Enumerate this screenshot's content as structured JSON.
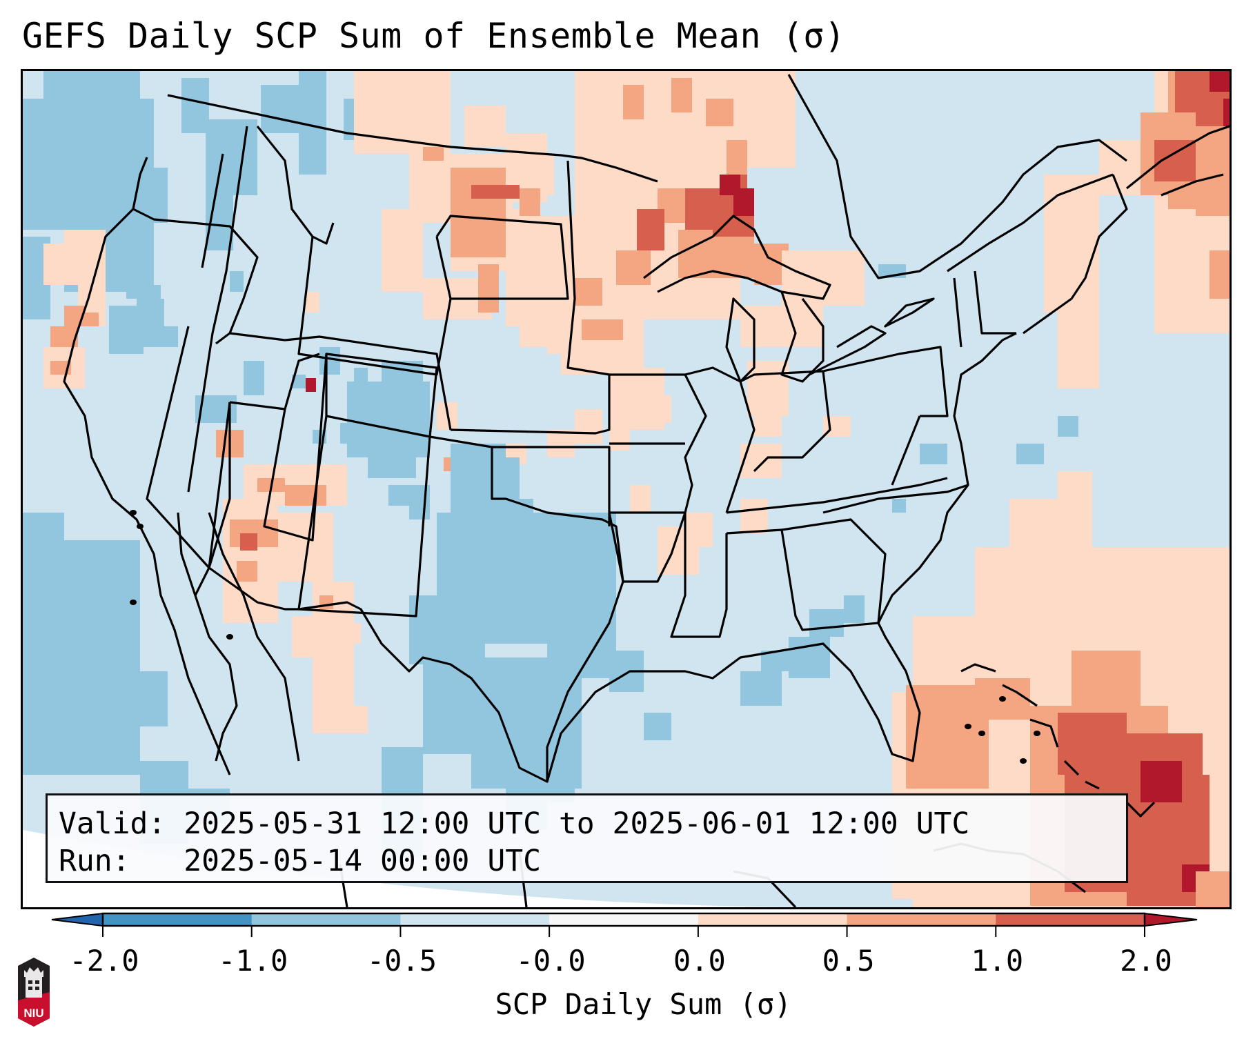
{
  "title": "GEFS Daily SCP Sum of Ensemble Mean (σ)",
  "info_box": {
    "valid_label": "Valid:",
    "valid_value": "2025-05-31 12:00 UTC to 2025-06-01 12:00 UTC",
    "run_label": "Run:  ",
    "run_value": "2025-05-14 00:00 UTC"
  },
  "colorbar": {
    "label": "SCP Daily Sum (σ)",
    "ticks": [
      "-2.0",
      "-1.0",
      "-0.5",
      "-0.0",
      "0.0",
      "0.5",
      "1.0",
      "2.0"
    ],
    "bins": [
      {
        "range": "< -2.0",
        "color": "#2166ac"
      },
      {
        "range": "-2.0 to -1.0",
        "color": "#4393c3"
      },
      {
        "range": "-1.0 to -0.5",
        "color": "#92c5de"
      },
      {
        "range": "-0.5 to -0.0",
        "color": "#d1e5f0"
      },
      {
        "range": "-0.0 to 0.0",
        "color": "#f7f7f7"
      },
      {
        "range": "0.0 to 0.5",
        "color": "#fddbc7"
      },
      {
        "range": "0.5 to 1.0",
        "color": "#f4a582"
      },
      {
        "range": "1.0 to 2.0",
        "color": "#d6604d"
      },
      {
        "range": "> 2.0",
        "color": "#b2182b"
      }
    ],
    "extend": "both"
  },
  "map": {
    "region": "CONUS",
    "projection": "Lambert Conformal",
    "background_color": "#d1e5f0",
    "boundary_color": "#000000",
    "highlights": [
      {
        "area": "Northern Minnesota / Lake Superior",
        "category": "> 2.0"
      },
      {
        "area": "Maritime Canada",
        "category": "> 2.0"
      },
      {
        "area": "Hispaniola / SE Bahamas",
        "category": "> 2.0"
      },
      {
        "area": "Northern Utah",
        "category": "> 2.0"
      },
      {
        "area": "SE Montana",
        "category": "1.0 to 2.0"
      },
      {
        "area": "West-central Arizona",
        "category": "1.0 to 2.0"
      },
      {
        "area": "West Texas / Southern Plains",
        "category": "-1.0 to -0.5"
      },
      {
        "area": "Eastern Colorado",
        "category": "-1.0 to -0.5"
      },
      {
        "area": "Pacific Northwest offshore",
        "category": "-1.0 to -0.5"
      }
    ]
  },
  "logo": {
    "text": "NIU",
    "name": "Northern Illinois University"
  }
}
